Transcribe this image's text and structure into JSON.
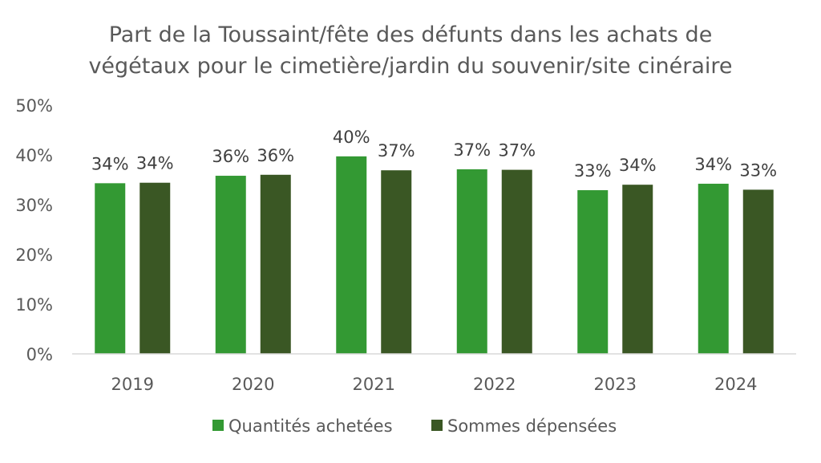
{
  "chart_data": {
    "type": "bar",
    "title_lines": [
      "Part de la Toussaint/fête des défunts dans les achats de",
      "végétaux pour le cimetière/jardin du souvenir/site cinéraire"
    ],
    "categories": [
      "2019",
      "2020",
      "2021",
      "2022",
      "2023",
      "2024"
    ],
    "series": [
      {
        "name": "Quantités achetées",
        "color": "#339933",
        "values": [
          34.3,
          35.8,
          39.7,
          37.1,
          32.9,
          34.2
        ],
        "labels": [
          "34%",
          "36%",
          "40%",
          "37%",
          "33%",
          "34%"
        ]
      },
      {
        "name": "Sommes dépensées",
        "color": "#3a5724",
        "values": [
          34.4,
          36.0,
          36.9,
          37.0,
          34.0,
          33.0
        ],
        "labels": [
          "34%",
          "36%",
          "37%",
          "37%",
          "34%",
          "33%"
        ]
      }
    ],
    "ylim": [
      0,
      50
    ],
    "yticks": [
      "0%",
      "10%",
      "20%",
      "30%",
      "40%",
      "50%"
    ],
    "grid": false,
    "legend_position": "bottom"
  }
}
